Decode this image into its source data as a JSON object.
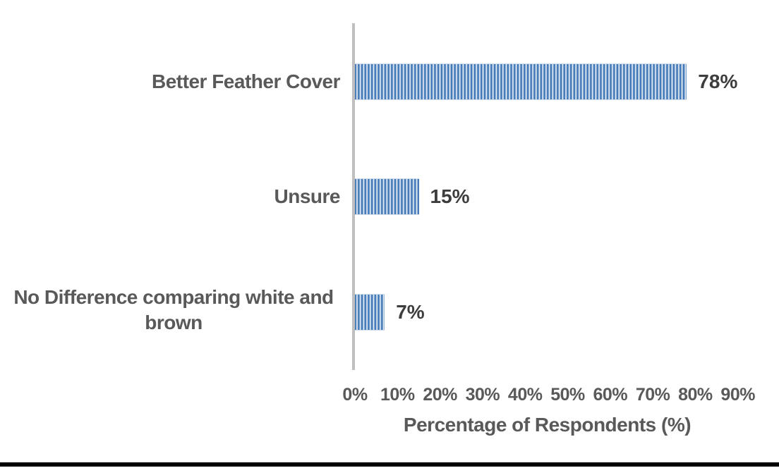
{
  "chart_data": {
    "type": "bar",
    "orientation": "horizontal",
    "title": "",
    "xlabel": "Percentage of Respondents (%)",
    "ylabel": "",
    "categories": [
      "Better Feather Cover",
      "Unsure",
      "No Difference comparing white and brown"
    ],
    "values": [
      78,
      15,
      7
    ],
    "data_labels": [
      "78%",
      "15%",
      "7%"
    ],
    "xlim": [
      0,
      90
    ],
    "x_ticks": [
      "0%",
      "10%",
      "20%",
      "30%",
      "40%",
      "50%",
      "60%",
      "70%",
      "80%",
      "90%"
    ],
    "grid": false,
    "legend": false,
    "colors": {
      "bar_stripe_dark": "#4077b6",
      "bar_stripe_light": "#e2eaf4",
      "axis_line": "#bfbfbf",
      "category_text": "#595959",
      "data_label_text": "#3d3d3d"
    }
  }
}
